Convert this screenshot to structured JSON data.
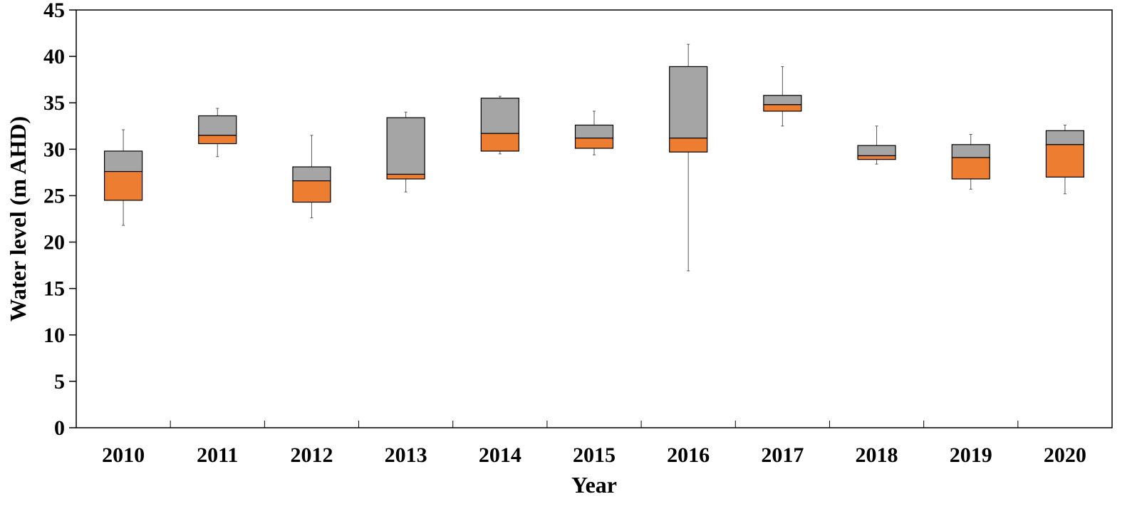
{
  "chart_data": {
    "type": "boxplot",
    "xlabel": "Year",
    "ylabel": "Water level (m AHD)",
    "ylim": [
      0,
      45
    ],
    "yticks": [
      0,
      5,
      10,
      15,
      20,
      25,
      30,
      35,
      40,
      45
    ],
    "grid": false,
    "legend": "none",
    "colors": {
      "lower_box": "#ed7d31",
      "upper_box": "#a5a5a5",
      "outline": "#000000",
      "whisker": "#595959"
    },
    "categories": [
      "2010",
      "2011",
      "2012",
      "2013",
      "2014",
      "2015",
      "2016",
      "2017",
      "2018",
      "2019",
      "2020"
    ],
    "boxes": [
      {
        "year": "2010",
        "min": 21.8,
        "q1": 24.5,
        "median": 27.6,
        "q3": 29.8,
        "max": 32.1
      },
      {
        "year": "2011",
        "min": 29.2,
        "q1": 30.6,
        "median": 31.5,
        "q3": 33.6,
        "max": 34.4
      },
      {
        "year": "2012",
        "min": 22.6,
        "q1": 24.3,
        "median": 26.6,
        "q3": 28.1,
        "max": 31.5
      },
      {
        "year": "2013",
        "min": 25.4,
        "q1": 26.8,
        "median": 27.3,
        "q3": 33.4,
        "max": 34.0
      },
      {
        "year": "2014",
        "min": 29.5,
        "q1": 29.8,
        "median": 31.7,
        "q3": 35.5,
        "max": 35.7
      },
      {
        "year": "2015",
        "min": 29.4,
        "q1": 30.1,
        "median": 31.2,
        "q3": 32.6,
        "max": 34.1
      },
      {
        "year": "2016",
        "min": 16.9,
        "q1": 29.7,
        "median": 31.2,
        "q3": 38.9,
        "max": 41.3
      },
      {
        "year": "2017",
        "min": 32.5,
        "q1": 34.1,
        "median": 34.8,
        "q3": 35.8,
        "max": 38.9
      },
      {
        "year": "2018",
        "min": 28.4,
        "q1": 28.9,
        "median": 29.3,
        "q3": 30.4,
        "max": 32.5
      },
      {
        "year": "2019",
        "min": 25.7,
        "q1": 26.8,
        "median": 29.1,
        "q3": 30.5,
        "max": 31.6
      },
      {
        "year": "2020",
        "min": 25.2,
        "q1": 27.0,
        "median": 30.5,
        "q3": 32.0,
        "max": 32.6
      }
    ]
  }
}
